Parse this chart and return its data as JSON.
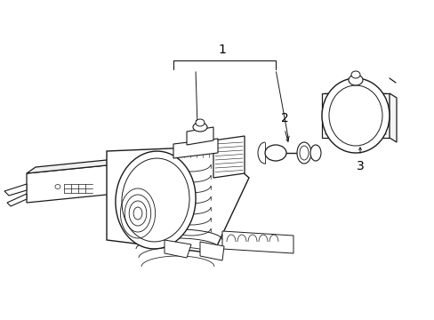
{
  "bg_color": "#ffffff",
  "line_color": "#1a1a1a",
  "label_color": "#000000",
  "label_fontsize": 10,
  "fig_width": 4.89,
  "fig_height": 3.6,
  "dpi": 100
}
